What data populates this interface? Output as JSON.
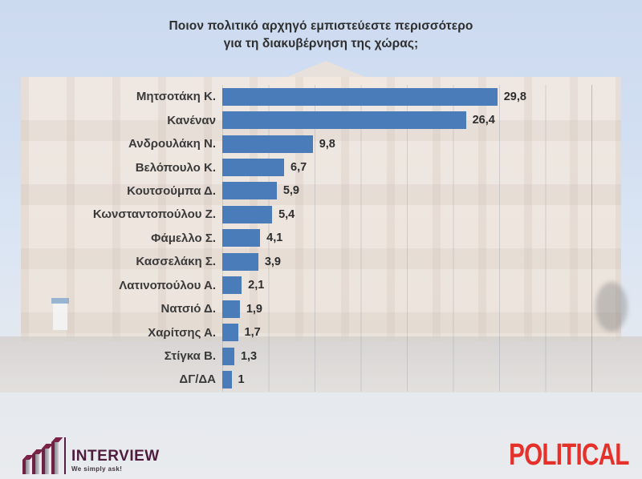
{
  "title": {
    "line1": "Ποιον πολιτικό αρχηγό εμπιστεύεστε περισσότερο",
    "line2": "για τη διακυβέρνηση της χώρας;"
  },
  "chart_data": {
    "type": "bar",
    "orientation": "horizontal",
    "title": "Ποιον πολιτικό αρχηγό εμπιστεύεστε περισσότερο για τη διακυβέρνηση της χώρας;",
    "categories": [
      "Μητσοτάκη Κ.",
      "Κανέναν",
      "Ανδρουλάκη Ν.",
      "Βελόπουλο Κ.",
      "Κουτσούμπα Δ.",
      "Κωνσταντοπούλου Ζ.",
      "Φάμελλο Σ.",
      "Κασσελάκη Σ.",
      "Λατινοπούλου Α.",
      "Νατσιό Δ.",
      "Χαρίτσης Α.",
      "Στίγκα Β.",
      "ΔΓ/ΔΑ"
    ],
    "values": [
      29.8,
      26.4,
      9.8,
      6.7,
      5.9,
      5.4,
      4.1,
      3.9,
      2.1,
      1.9,
      1.7,
      1.3,
      1
    ],
    "value_labels": [
      "29,8",
      "26,4",
      "9,8",
      "6,7",
      "5,9",
      "5,4",
      "4,1",
      "3,9",
      "2,1",
      "1,9",
      "1,7",
      "1,3",
      "1"
    ],
    "xlim": [
      0,
      40
    ],
    "gridline_step": 5,
    "grid": true,
    "legend": false,
    "bar_color": "#4a7cba"
  },
  "footer": {
    "interview": {
      "name": "INTERVIEW",
      "tagline": "We simply ask!",
      "color": "#4f1c3e"
    },
    "political": {
      "text": "POLITICAL",
      "color": "#e6312b"
    }
  }
}
